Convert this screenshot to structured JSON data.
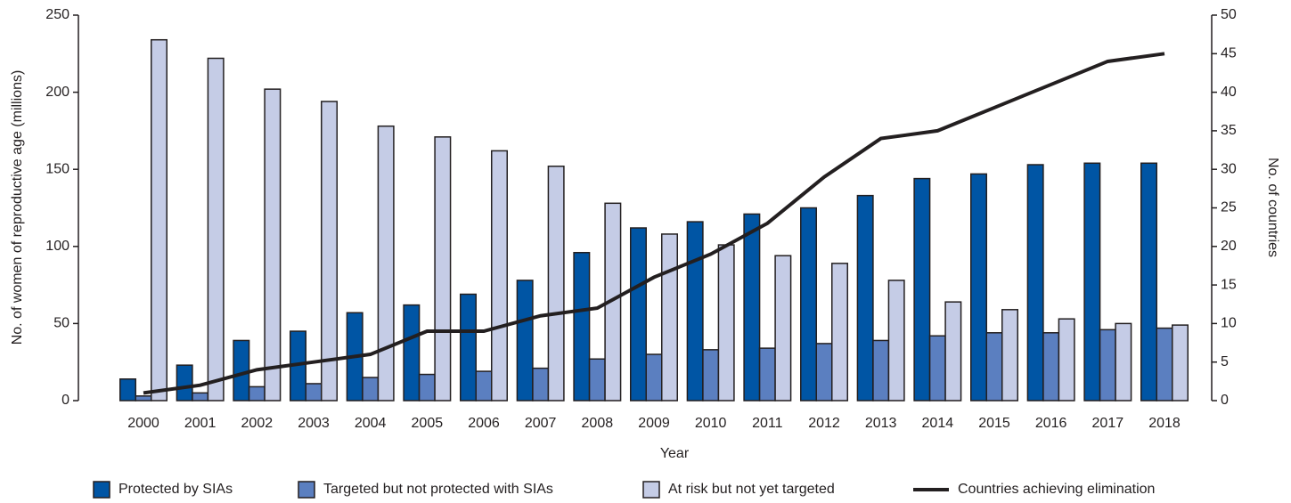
{
  "chart_data": {
    "type": "bar",
    "x_label": "Year",
    "y_label": "No. of women of reproductive age (millions)",
    "y2_label": "No. of countries",
    "categories": [
      "2000",
      "2001",
      "2002",
      "2003",
      "2004",
      "2005",
      "2006",
      "2007",
      "2008",
      "2009",
      "2010",
      "2011",
      "2012",
      "2013",
      "2014",
      "2015",
      "2016",
      "2017",
      "2018"
    ],
    "series": [
      {
        "name": "Protected by SIAs",
        "color": "#0055a4",
        "type": "bar",
        "values": [
          14,
          23,
          39,
          45,
          57,
          62,
          69,
          78,
          96,
          112,
          116,
          121,
          125,
          133,
          144,
          147,
          153,
          154,
          154
        ]
      },
      {
        "name": "Targeted but not protected with SIAs",
        "color": "#5b7fc0",
        "type": "bar",
        "values": [
          3,
          5,
          9,
          11,
          15,
          17,
          19,
          21,
          27,
          30,
          33,
          34,
          37,
          39,
          42,
          44,
          44,
          46,
          47
        ]
      },
      {
        "name": "At risk but not yet targeted",
        "color": "#c5cce6",
        "type": "bar",
        "values": [
          234,
          222,
          202,
          194,
          178,
          171,
          162,
          152,
          128,
          108,
          101,
          94,
          89,
          78,
          64,
          59,
          53,
          50,
          49
        ]
      },
      {
        "name": "Countries achieving elimination",
        "color": "#231f20",
        "type": "line",
        "axis": "y2",
        "values": [
          1,
          2,
          4,
          5,
          6,
          9,
          9,
          11,
          12,
          16,
          19,
          23,
          29,
          34,
          35,
          38,
          41,
          44,
          45
        ]
      }
    ],
    "ylim": [
      0,
      250
    ],
    "yticks": [
      0,
      50,
      100,
      150,
      200,
      250
    ],
    "y2lim": [
      0,
      50
    ],
    "y2ticks": [
      0,
      5,
      10,
      15,
      20,
      25,
      30,
      35,
      40,
      45,
      50
    ]
  }
}
